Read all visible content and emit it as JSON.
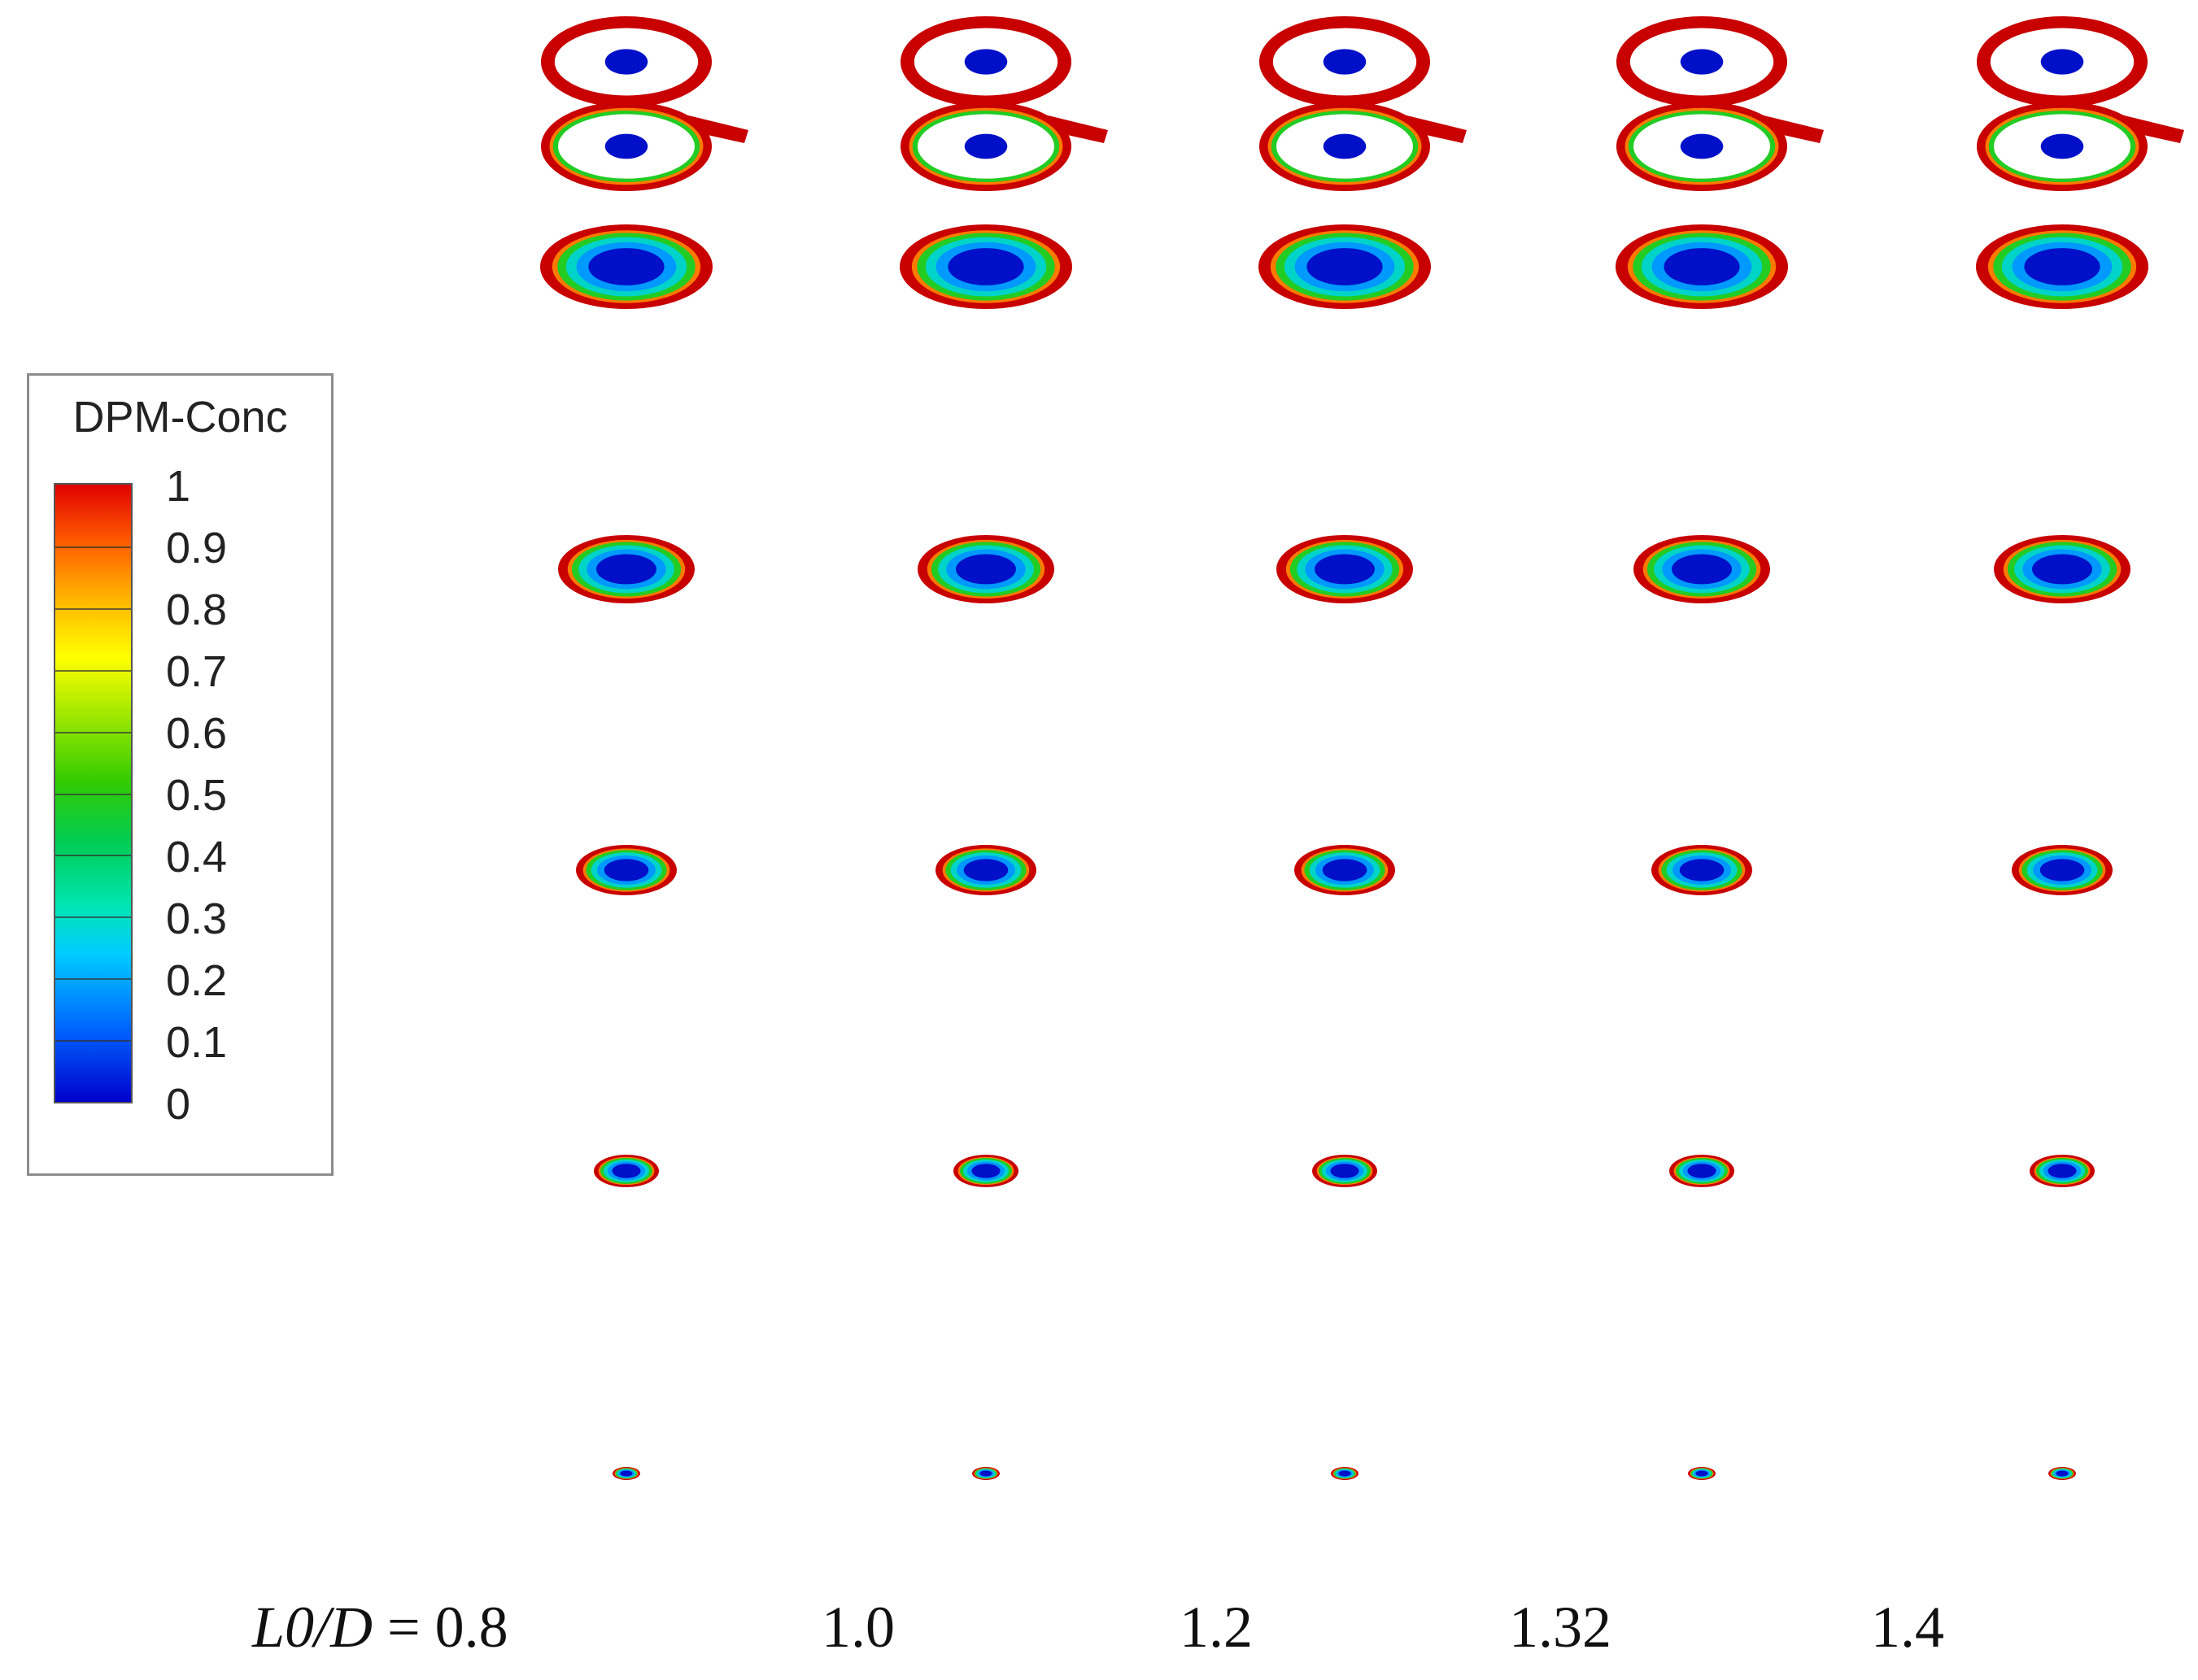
{
  "legend": {
    "title": "DPM-Conc",
    "ticks": [
      "1",
      "0.9",
      "0.8",
      "0.7",
      "0.6",
      "0.5",
      "0.4",
      "0.3",
      "0.2",
      "0.1",
      "0"
    ]
  },
  "x_labels": {
    "prefix_var": "L0/D",
    "equals": " = ",
    "values": [
      "0.8",
      "1.0",
      "1.2",
      "1.32",
      "1.4"
    ]
  },
  "colors": {
    "rim": "#c80000",
    "orange": "#ff7a00",
    "yellow": "#e8e800",
    "green": "#22cc22",
    "cyan": "#00d4c8",
    "light_blue": "#0099ff",
    "core": "#0010c8"
  }
}
